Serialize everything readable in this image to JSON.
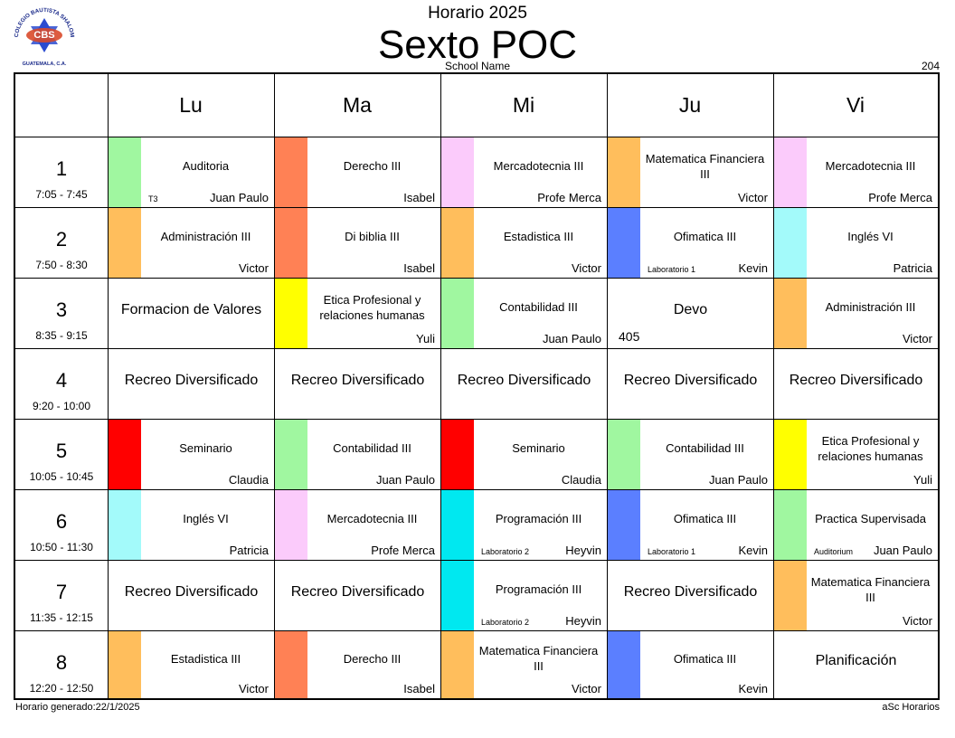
{
  "header": {
    "logo_text": "COLEGIO BAUTISTA SHALOM",
    "logo_initials": "CBS",
    "logo_place": "GUATEMALA, C.A.",
    "school_year": "Horario 2025",
    "class_title": "Sexto POC",
    "school_name": "School Name",
    "room_code": "204"
  },
  "days": [
    "Lu",
    "Ma",
    "Mi",
    "Ju",
    "Vi"
  ],
  "periods": [
    {
      "num": "1",
      "time": "7:05 - 7:45"
    },
    {
      "num": "2",
      "time": "7:50 - 8:30"
    },
    {
      "num": "3",
      "time": "8:35 - 9:15"
    },
    {
      "num": "4",
      "time": "9:20 - 10:00"
    },
    {
      "num": "5",
      "time": "10:05 - 10:45"
    },
    {
      "num": "6",
      "time": "10:50 - 11:30"
    },
    {
      "num": "7",
      "time": "11:35 - 12:15"
    },
    {
      "num": "8",
      "time": "12:20 - 12:50"
    }
  ],
  "cells": [
    [
      {
        "subject": "Auditoria",
        "teacher": "Juan Paulo",
        "room": "T3",
        "color": "#A0F7A0"
      },
      {
        "subject": "Derecho III",
        "teacher": "Isabel",
        "color": "#FF8155"
      },
      {
        "subject": "Mercadotecnia III",
        "teacher": "Profe Merca",
        "color": "#FBCBFB"
      },
      {
        "subject": "Matematica Financiera III",
        "teacher": "Victor",
        "color": "#FFBE5C"
      },
      {
        "subject": "Mercadotecnia III",
        "teacher": "Profe Merca",
        "color": "#FBCBFB"
      }
    ],
    [
      {
        "subject": "Administración III",
        "teacher": "Victor",
        "color": "#FFBE5C"
      },
      {
        "subject": "Di biblia III",
        "teacher": "Isabel",
        "color": "#FF8155"
      },
      {
        "subject": "Estadistica III",
        "teacher": "Victor",
        "color": "#FFBE5C"
      },
      {
        "subject": "Ofimatica III",
        "teacher": "Kevin",
        "room": "Laboratorio 1",
        "color": "#5B7FFF"
      },
      {
        "subject": "Inglés VI",
        "teacher": "Patricia",
        "color": "#A3FAFA"
      }
    ],
    [
      {
        "subject": "Formacion de Valores",
        "big": true
      },
      {
        "subject": "Etica Profesional y relaciones humanas",
        "teacher": "Yuli",
        "color": "#FFFF00"
      },
      {
        "subject": "Contabilidad III",
        "teacher": "Juan Paulo",
        "color": "#A0F7A0"
      },
      {
        "subject": "Devo",
        "room": "405",
        "big": true
      },
      {
        "subject": "Administración III",
        "teacher": "Victor",
        "color": "#FFBE5C"
      }
    ],
    [
      {
        "subject": "Recreo Diversificado",
        "big": true
      },
      {
        "subject": "Recreo Diversificado",
        "big": true
      },
      {
        "subject": "Recreo Diversificado",
        "big": true
      },
      {
        "subject": "Recreo Diversificado",
        "big": true
      },
      {
        "subject": "Recreo Diversificado",
        "big": true
      }
    ],
    [
      {
        "subject": "Seminario",
        "teacher": "Claudia",
        "color": "#FF0000"
      },
      {
        "subject": "Contabilidad III",
        "teacher": "Juan Paulo",
        "color": "#A0F7A0"
      },
      {
        "subject": "Seminario",
        "teacher": "Claudia",
        "color": "#FF0000"
      },
      {
        "subject": "Contabilidad III",
        "teacher": "Juan Paulo",
        "color": "#A0F7A0"
      },
      {
        "subject": "Etica Profesional y relaciones humanas",
        "teacher": "Yuli",
        "color": "#FFFF00"
      }
    ],
    [
      {
        "subject": "Inglés VI",
        "teacher": "Patricia",
        "color": "#A3FAFA"
      },
      {
        "subject": "Mercadotecnia III",
        "teacher": "Profe Merca",
        "color": "#FBCBFB"
      },
      {
        "subject": "Programación III",
        "teacher": "Heyvin",
        "room": "Laboratorio 2",
        "color": "#00E8F0"
      },
      {
        "subject": "Ofimatica III",
        "teacher": "Kevin",
        "room": "Laboratorio 1",
        "color": "#5B7FFF"
      },
      {
        "subject": "Practica Supervisada",
        "teacher": "Juan Paulo",
        "room": "Auditorium",
        "color": "#A0F7A0"
      }
    ],
    [
      {
        "subject": "Recreo Diversificado",
        "big": true
      },
      {
        "subject": "Recreo Diversificado",
        "big": true
      },
      {
        "subject": "Programación III",
        "teacher": "Heyvin",
        "room": "Laboratorio 2",
        "color": "#00E8F0"
      },
      {
        "subject": "Recreo Diversificado",
        "big": true
      },
      {
        "subject": "Matematica Financiera III",
        "teacher": "Victor",
        "color": "#FFBE5C"
      }
    ],
    [
      {
        "subject": "Estadistica III",
        "teacher": "Victor",
        "color": "#FFBE5C"
      },
      {
        "subject": "Derecho III",
        "teacher": "Isabel",
        "color": "#FF8155"
      },
      {
        "subject": "Matematica Financiera III",
        "teacher": "Victor",
        "color": "#FFBE5C"
      },
      {
        "subject": "Ofimatica III",
        "teacher": "Kevin",
        "color": "#5B7FFF"
      },
      {
        "subject": "Planificación",
        "big": true
      }
    ]
  ],
  "footer": {
    "generated": "Horario generado:22/1/2025",
    "software": "aSc Horarios"
  }
}
